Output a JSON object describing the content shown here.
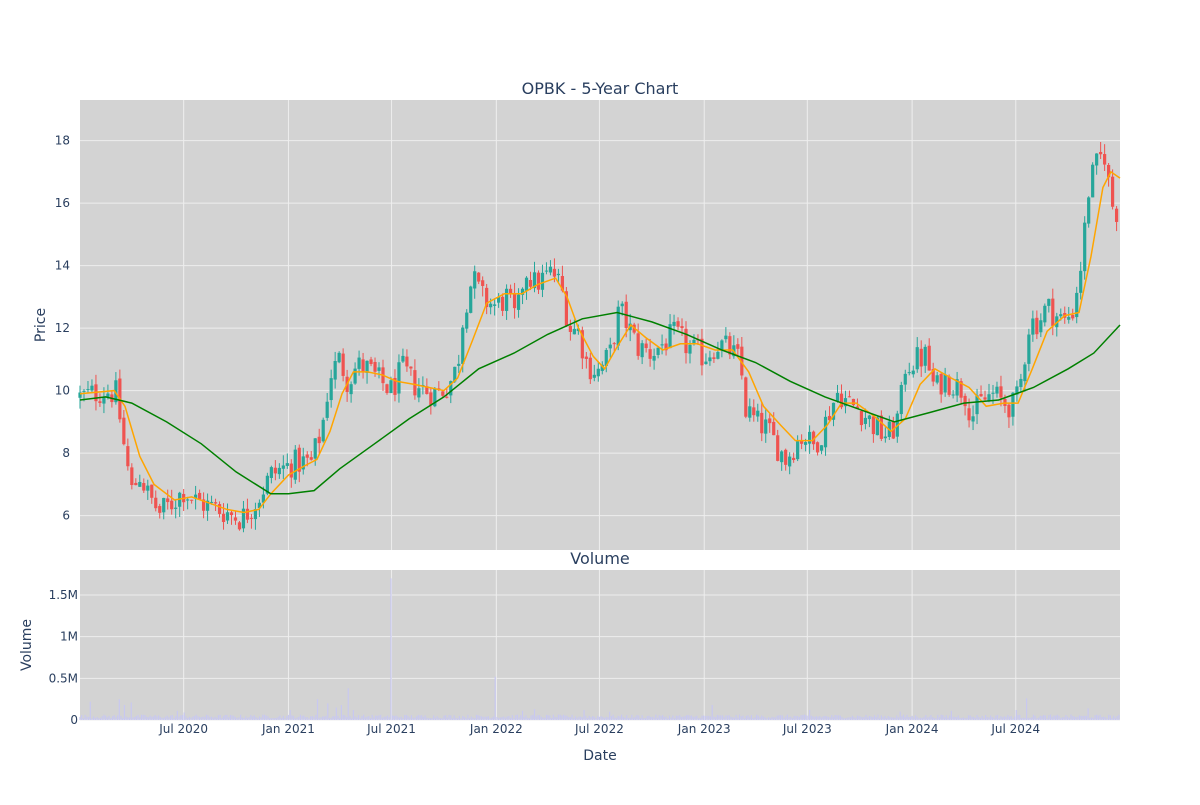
{
  "chart_data": [
    {
      "type": "candlestick",
      "title": "OPBK - 5-Year Chart",
      "ylabel": "Price",
      "xlim": [
        "2020-01-01",
        "2024-12-31"
      ],
      "ylim": [
        4.9,
        19.3
      ],
      "yticks": [
        6,
        8,
        10,
        12,
        14,
        16,
        18
      ],
      "grid": true,
      "colors": {
        "up": "#26a69a",
        "down": "#ef5350",
        "ma_short": "#ffa500",
        "ma_long": "#008000",
        "plot_bg": "#d3d3d3"
      },
      "price_path": [
        [
          "2020-01-01",
          9.8
        ],
        [
          "2020-02-15",
          10.0
        ],
        [
          "2020-03-05",
          9.9
        ],
        [
          "2020-03-20",
          8.0
        ],
        [
          "2020-04-01",
          6.8
        ],
        [
          "2020-04-15",
          7.3
        ],
        [
          "2020-05-01",
          6.6
        ],
        [
          "2020-05-20",
          6.1
        ],
        [
          "2020-06-10",
          6.4
        ],
        [
          "2020-07-01",
          6.8
        ],
        [
          "2020-07-20",
          6.5
        ],
        [
          "2020-08-15",
          6.3
        ],
        [
          "2020-09-15",
          6.1
        ],
        [
          "2020-10-10",
          5.9
        ],
        [
          "2020-10-20",
          6.1
        ],
        [
          "2020-11-10",
          6.6
        ],
        [
          "2020-12-01",
          7.3
        ],
        [
          "2020-12-20",
          7.5
        ],
        [
          "2021-01-15",
          7.7
        ],
        [
          "2021-02-10",
          7.7
        ],
        [
          "2021-03-01",
          8.8
        ],
        [
          "2021-03-15",
          10.5
        ],
        [
          "2021-04-01",
          11.0
        ],
        [
          "2021-04-15",
          10.3
        ],
        [
          "2021-05-01",
          10.8
        ],
        [
          "2021-05-20",
          10.7
        ],
        [
          "2021-06-10",
          10.3
        ],
        [
          "2021-07-01",
          10.0
        ],
        [
          "2021-07-20",
          10.7
        ],
        [
          "2021-08-10",
          10.2
        ],
        [
          "2021-09-01",
          10.0
        ],
        [
          "2021-09-20",
          9.9
        ],
        [
          "2021-10-10",
          10.2
        ],
        [
          "2021-10-25",
          10.8
        ],
        [
          "2021-11-05",
          12.6
        ],
        [
          "2021-11-20",
          13.6
        ],
        [
          "2021-12-10",
          12.9
        ],
        [
          "2022-01-01",
          12.7
        ],
        [
          "2022-01-20",
          13.0
        ],
        [
          "2022-02-05",
          12.2
        ],
        [
          "2022-02-20",
          13.9
        ],
        [
          "2022-03-10",
          13.4
        ],
        [
          "2022-03-25",
          13.6
        ],
        [
          "2022-04-10",
          13.8
        ],
        [
          "2022-04-25",
          13.3
        ],
        [
          "2022-05-10",
          12.0
        ],
        [
          "2022-05-25",
          11.9
        ],
        [
          "2022-06-10",
          10.8
        ],
        [
          "2022-06-30",
          10.6
        ],
        [
          "2022-07-20",
          11.2
        ],
        [
          "2022-08-05",
          12.6
        ],
        [
          "2022-08-20",
          12.1
        ],
        [
          "2022-09-05",
          11.4
        ],
        [
          "2022-10-01",
          11.2
        ],
        [
          "2022-10-20",
          11.5
        ],
        [
          "2022-11-10",
          11.8
        ],
        [
          "2022-12-10",
          11.3
        ],
        [
          "2023-01-01",
          11.1
        ],
        [
          "2023-01-25",
          11.5
        ],
        [
          "2023-02-15",
          11.3
        ],
        [
          "2023-03-05",
          10.9
        ],
        [
          "2023-03-15",
          9.4
        ],
        [
          "2023-04-01",
          9.0
        ],
        [
          "2023-04-20",
          8.8
        ],
        [
          "2023-05-10",
          8.2
        ],
        [
          "2023-05-25",
          7.8
        ],
        [
          "2023-06-10",
          8.3
        ],
        [
          "2023-06-25",
          8.6
        ],
        [
          "2023-07-10",
          8.2
        ],
        [
          "2023-07-25",
          8.6
        ],
        [
          "2023-08-10",
          9.4
        ],
        [
          "2023-08-25",
          10.0
        ],
        [
          "2023-09-10",
          9.6
        ],
        [
          "2023-10-01",
          9.4
        ],
        [
          "2023-10-20",
          9.0
        ],
        [
          "2023-11-10",
          8.6
        ],
        [
          "2023-11-25",
          8.6
        ],
        [
          "2023-12-10",
          9.3
        ],
        [
          "2023-12-20",
          10.8
        ],
        [
          "2024-01-10",
          11.0
        ],
        [
          "2024-01-25",
          11.1
        ],
        [
          "2024-02-10",
          10.0
        ],
        [
          "2024-02-25",
          10.4
        ],
        [
          "2024-03-15",
          10.2
        ],
        [
          "2024-04-01",
          10.0
        ],
        [
          "2024-04-15",
          9.2
        ],
        [
          "2024-05-01",
          9.6
        ],
        [
          "2024-05-20",
          9.9
        ],
        [
          "2024-06-10",
          9.6
        ],
        [
          "2024-06-30",
          9.5
        ],
        [
          "2024-07-10",
          10.3
        ],
        [
          "2024-07-25",
          12.2
        ],
        [
          "2024-08-10",
          12.2
        ],
        [
          "2024-08-25",
          12.7
        ],
        [
          "2024-09-10",
          12.4
        ],
        [
          "2024-09-25",
          12.2
        ],
        [
          "2024-10-10",
          12.6
        ],
        [
          "2024-10-25",
          14.2
        ],
        [
          "2024-11-06",
          16.4
        ],
        [
          "2024-11-15",
          17.0
        ],
        [
          "2024-11-25",
          17.4
        ],
        [
          "2024-12-05",
          17.6
        ],
        [
          "2024-12-15",
          16.0
        ],
        [
          "2024-12-31",
          15.6
        ]
      ],
      "series": [
        {
          "type": "line",
          "color": "#ffa500",
          "points": [
            [
              "2020-01-01",
              9.9
            ],
            [
              "2020-03-01",
              10.0
            ],
            [
              "2020-03-20",
              9.5
            ],
            [
              "2020-04-15",
              7.9
            ],
            [
              "2020-05-10",
              7.0
            ],
            [
              "2020-06-15",
              6.5
            ],
            [
              "2020-07-15",
              6.6
            ],
            [
              "2020-08-15",
              6.4
            ],
            [
              "2020-09-15",
              6.2
            ],
            [
              "2020-10-15",
              6.1
            ],
            [
              "2020-11-10",
              6.2
            ],
            [
              "2020-12-01",
              6.7
            ],
            [
              "2021-01-01",
              7.3
            ],
            [
              "2021-01-30",
              7.6
            ],
            [
              "2021-02-20",
              7.8
            ],
            [
              "2021-03-15",
              8.7
            ],
            [
              "2021-04-05",
              9.9
            ],
            [
              "2021-04-25",
              10.6
            ],
            [
              "2021-05-20",
              10.6
            ],
            [
              "2021-06-15",
              10.5
            ],
            [
              "2021-07-10",
              10.3
            ],
            [
              "2021-08-10",
              10.2
            ],
            [
              "2021-09-05",
              10.1
            ],
            [
              "2021-10-01",
              10.0
            ],
            [
              "2021-10-25",
              10.4
            ],
            [
              "2021-11-20",
              11.6
            ],
            [
              "2021-12-15",
              12.8
            ],
            [
              "2022-01-15",
              13.1
            ],
            [
              "2022-02-15",
              13.1
            ],
            [
              "2022-03-15",
              13.4
            ],
            [
              "2022-04-15",
              13.6
            ],
            [
              "2022-05-05",
              13.0
            ],
            [
              "2022-05-25",
              12.0
            ],
            [
              "2022-06-20",
              11.1
            ],
            [
              "2022-07-10",
              10.7
            ],
            [
              "2022-08-01",
              11.4
            ],
            [
              "2022-08-25",
              12.1
            ],
            [
              "2022-09-20",
              11.7
            ],
            [
              "2022-10-20",
              11.3
            ],
            [
              "2022-11-20",
              11.5
            ],
            [
              "2022-12-20",
              11.5
            ],
            [
              "2023-01-20",
              11.3
            ],
            [
              "2023-02-20",
              11.3
            ],
            [
              "2023-03-20",
              10.6
            ],
            [
              "2023-04-15",
              9.5
            ],
            [
              "2023-05-15",
              8.9
            ],
            [
              "2023-06-10",
              8.4
            ],
            [
              "2023-07-10",
              8.4
            ],
            [
              "2023-08-05",
              8.9
            ],
            [
              "2023-08-30",
              9.6
            ],
            [
              "2023-09-25",
              9.6
            ],
            [
              "2023-10-25",
              9.2
            ],
            [
              "2023-11-25",
              8.7
            ],
            [
              "2023-12-20",
              9.1
            ],
            [
              "2024-01-15",
              10.2
            ],
            [
              "2024-02-10",
              10.7
            ],
            [
              "2024-03-10",
              10.4
            ],
            [
              "2024-04-10",
              10.1
            ],
            [
              "2024-05-10",
              9.5
            ],
            [
              "2024-06-10",
              9.6
            ],
            [
              "2024-07-05",
              9.6
            ],
            [
              "2024-07-30",
              10.7
            ],
            [
              "2024-08-25",
              11.9
            ],
            [
              "2024-09-25",
              12.4
            ],
            [
              "2024-10-20",
              12.5
            ],
            [
              "2024-11-10",
              14.3
            ],
            [
              "2024-12-01",
              16.5
            ],
            [
              "2024-12-15",
              17.0
            ],
            [
              "2024-12-31",
              16.8
            ]
          ]
        },
        {
          "type": "line",
          "color": "#008000",
          "points": [
            [
              "2020-01-01",
              9.7
            ],
            [
              "2020-02-15",
              9.8
            ],
            [
              "2020-04-01",
              9.6
            ],
            [
              "2020-06-01",
              9.0
            ],
            [
              "2020-08-01",
              8.3
            ],
            [
              "2020-10-01",
              7.4
            ],
            [
              "2020-12-01",
              6.7
            ],
            [
              "2021-01-01",
              6.7
            ],
            [
              "2021-02-15",
              6.8
            ],
            [
              "2021-04-01",
              7.5
            ],
            [
              "2021-06-01",
              8.3
            ],
            [
              "2021-08-01",
              9.1
            ],
            [
              "2021-10-01",
              9.8
            ],
            [
              "2021-12-01",
              10.7
            ],
            [
              "2022-02-01",
              11.2
            ],
            [
              "2022-04-01",
              11.8
            ],
            [
              "2022-06-01",
              12.3
            ],
            [
              "2022-08-01",
              12.5
            ],
            [
              "2022-10-01",
              12.2
            ],
            [
              "2022-12-01",
              11.8
            ],
            [
              "2023-02-01",
              11.3
            ],
            [
              "2023-04-01",
              10.9
            ],
            [
              "2023-06-01",
              10.3
            ],
            [
              "2023-08-01",
              9.8
            ],
            [
              "2023-10-01",
              9.4
            ],
            [
              "2023-12-01",
              9.0
            ],
            [
              "2024-02-01",
              9.3
            ],
            [
              "2024-04-01",
              9.6
            ],
            [
              "2024-06-01",
              9.7
            ],
            [
              "2024-08-01",
              10.1
            ],
            [
              "2024-10-01",
              10.7
            ],
            [
              "2024-11-15",
              11.2
            ],
            [
              "2024-12-31",
              12.1
            ]
          ]
        }
      ],
      "xticks": [
        "Jul 2020",
        "Jan 2021",
        "Jul 2021",
        "Jan 2022",
        "Jul 2022",
        "Jan 2023",
        "Jul 2023",
        "Jan 2024",
        "Jul 2024"
      ],
      "xtick_dates": [
        "2020-07-01",
        "2021-01-01",
        "2021-07-01",
        "2022-01-01",
        "2022-07-01",
        "2023-01-01",
        "2023-07-01",
        "2024-01-01",
        "2024-07-01"
      ]
    },
    {
      "type": "bar",
      "title": "Volume",
      "xlabel": "Date",
      "ylabel": "Volume",
      "ylim": [
        0,
        1800000
      ],
      "yticks": [
        0,
        500000,
        1000000,
        1500000
      ],
      "ytick_labels": [
        "0",
        "0.5M",
        "1M",
        "1.5M"
      ],
      "bar_color": "#c8c8f0",
      "spikes": [
        [
          "2020-01-20",
          220000
        ],
        [
          "2020-03-10",
          250000
        ],
        [
          "2020-03-20",
          180000
        ],
        [
          "2020-04-01",
          210000
        ],
        [
          "2020-06-20",
          110000
        ],
        [
          "2020-07-01",
          90000
        ],
        [
          "2021-01-05",
          120000
        ],
        [
          "2021-02-20",
          250000
        ],
        [
          "2021-03-10",
          200000
        ],
        [
          "2021-03-25",
          150000
        ],
        [
          "2021-04-05",
          180000
        ],
        [
          "2021-04-15",
          380000
        ],
        [
          "2021-04-25",
          120000
        ],
        [
          "2021-06-30",
          1700000
        ],
        [
          "2021-12-31",
          520000
        ],
        [
          "2022-02-15",
          110000
        ],
        [
          "2022-03-10",
          130000
        ],
        [
          "2022-06-05",
          120000
        ],
        [
          "2022-07-20",
          100000
        ],
        [
          "2023-01-15",
          180000
        ],
        [
          "2023-07-05",
          120000
        ],
        [
          "2023-12-10",
          100000
        ],
        [
          "2024-03-10",
          110000
        ],
        [
          "2024-07-01",
          120000
        ],
        [
          "2024-07-20",
          260000
        ],
        [
          "2024-11-06",
          140000
        ]
      ],
      "xticks": [
        "Jul 2020",
        "Jan 2021",
        "Jul 2021",
        "Jan 2022",
        "Jul 2022",
        "Jan 2023",
        "Jul 2023",
        "Jan 2024",
        "Jul 2024"
      ]
    }
  ]
}
